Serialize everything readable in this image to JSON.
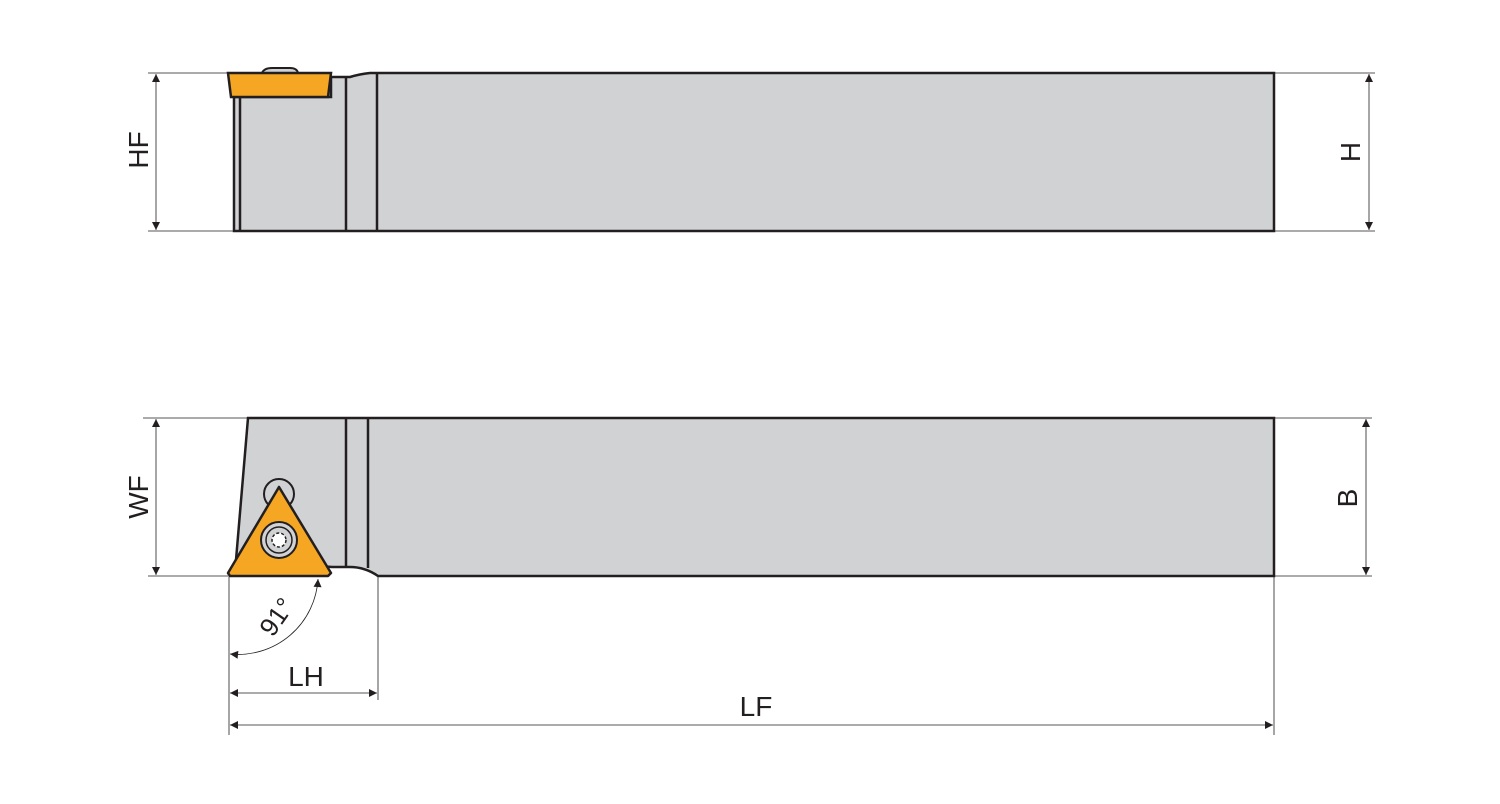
{
  "colors": {
    "body": "#d1d2d4",
    "insert": "#f5a623",
    "outline": "#231f20"
  },
  "side_view": {
    "dims": {
      "hf": "HF",
      "h": "H"
    }
  },
  "top_view": {
    "dims": {
      "wf": "WF",
      "b": "B",
      "lh": "LH",
      "lf": "LF",
      "angle": "91°"
    }
  }
}
